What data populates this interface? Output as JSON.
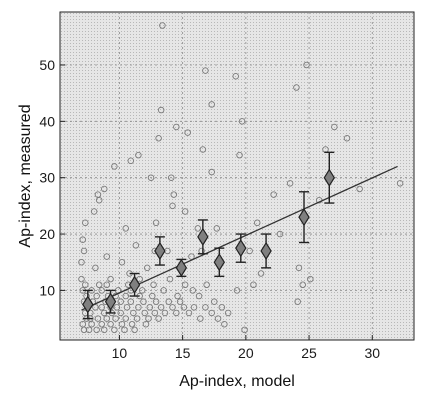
{
  "chart_data": {
    "type": "scatter",
    "title": "",
    "xlabel": "Ap-index, model",
    "ylabel": "Ap-index, measured",
    "xlim": [
      5.3,
      33.3
    ],
    "ylim": [
      1.2,
      59.4
    ],
    "xticks": [
      10,
      15,
      20,
      25,
      30
    ],
    "yticks": [
      10,
      20,
      30,
      40,
      50
    ],
    "grid": true,
    "colors": {
      "plot_background": "#d9d9d9",
      "points": "#7a7a7a",
      "means": "#7f7f7f",
      "fit_line": "#333333"
    },
    "series": [
      {
        "kind": "scatter",
        "points": [
          [
            13.4,
            57
          ],
          [
            16.8,
            49
          ],
          [
            17.3,
            43
          ],
          [
            19.2,
            48
          ],
          [
            24.0,
            46
          ],
          [
            24.8,
            50
          ],
          [
            13.3,
            42
          ],
          [
            13.1,
            37
          ],
          [
            14.5,
            39
          ],
          [
            15.4,
            38
          ],
          [
            19.7,
            40
          ],
          [
            11.5,
            34
          ],
          [
            10.9,
            33
          ],
          [
            8.3,
            27
          ],
          [
            8.8,
            28
          ],
          [
            9.6,
            32
          ],
          [
            12.5,
            30
          ],
          [
            14.1,
            30
          ],
          [
            14.3,
            27
          ],
          [
            16.6,
            35
          ],
          [
            19.5,
            34
          ],
          [
            17.3,
            31
          ],
          [
            22.2,
            27
          ],
          [
            23.5,
            29
          ],
          [
            26.3,
            35
          ],
          [
            27.0,
            39
          ],
          [
            28.0,
            37
          ],
          [
            29.0,
            28
          ],
          [
            32.2,
            29
          ],
          [
            25.8,
            26
          ],
          [
            8.0,
            24
          ],
          [
            8.4,
            26
          ],
          [
            10.5,
            21
          ],
          [
            11.3,
            18
          ],
          [
            12.8,
            17
          ],
          [
            14.2,
            25
          ],
          [
            15.2,
            24
          ],
          [
            17.7,
            21
          ],
          [
            16.5,
            17
          ],
          [
            18.0,
            15
          ],
          [
            20.3,
            17
          ],
          [
            20.9,
            22
          ],
          [
            22.7,
            20
          ],
          [
            24.2,
            14
          ],
          [
            24.5,
            11
          ],
          [
            24.1,
            8
          ],
          [
            25.1,
            12
          ],
          [
            7.1,
            19
          ],
          [
            7.2,
            17
          ],
          [
            7.0,
            15
          ],
          [
            7.3,
            22
          ],
          [
            8.1,
            14
          ],
          [
            9.0,
            16
          ],
          [
            9.3,
            12
          ],
          [
            10.2,
            15
          ],
          [
            10.8,
            13
          ],
          [
            11.6,
            12
          ],
          [
            12.2,
            14
          ],
          [
            12.7,
            11
          ],
          [
            13.5,
            10
          ],
          [
            14.0,
            12
          ],
          [
            14.6,
            9
          ],
          [
            15.2,
            11
          ],
          [
            15.8,
            10
          ],
          [
            16.3,
            9
          ],
          [
            16.9,
            11
          ],
          [
            17.5,
            8
          ],
          [
            18.1,
            7
          ],
          [
            18.6,
            6
          ],
          [
            19.3,
            10
          ],
          [
            19.9,
            3
          ],
          [
            20.6,
            11
          ],
          [
            21.2,
            13
          ],
          [
            16.2,
            21
          ],
          [
            15.7,
            16
          ],
          [
            13.8,
            17
          ],
          [
            12.9,
            22
          ],
          [
            7.0,
            12
          ],
          [
            7.1,
            10
          ],
          [
            7.2,
            8
          ],
          [
            7.3,
            6
          ],
          [
            7.4,
            5
          ],
          [
            7.1,
            4
          ],
          [
            7.2,
            3
          ],
          [
            7.6,
            3
          ],
          [
            7.7,
            5
          ],
          [
            7.5,
            7
          ],
          [
            7.4,
            9
          ],
          [
            7.3,
            11
          ],
          [
            7.8,
            10
          ],
          [
            7.9,
            8
          ],
          [
            7.7,
            6
          ],
          [
            7.8,
            4
          ],
          [
            8.2,
            3
          ],
          [
            8.3,
            5
          ],
          [
            8.1,
            7
          ],
          [
            8.2,
            9
          ],
          [
            8.4,
            11
          ],
          [
            8.6,
            10
          ],
          [
            8.6,
            7
          ],
          [
            8.6,
            4
          ],
          [
            8.8,
            3
          ],
          [
            9.0,
            5
          ],
          [
            8.8,
            6
          ],
          [
            8.9,
            8
          ],
          [
            9.0,
            11
          ],
          [
            9.1,
            9
          ],
          [
            9.3,
            7
          ],
          [
            9.4,
            6
          ],
          [
            9.3,
            4
          ],
          [
            9.6,
            3
          ],
          [
            9.7,
            5
          ],
          [
            9.8,
            7
          ],
          [
            9.7,
            9
          ],
          [
            9.9,
            10
          ],
          [
            10.1,
            8
          ],
          [
            10.1,
            6
          ],
          [
            10.2,
            4
          ],
          [
            10.4,
            3
          ],
          [
            10.5,
            5
          ],
          [
            10.6,
            7
          ],
          [
            10.5,
            9
          ],
          [
            10.7,
            11
          ],
          [
            10.9,
            10
          ],
          [
            10.9,
            8
          ],
          [
            11.1,
            6
          ],
          [
            11.0,
            4
          ],
          [
            11.2,
            3
          ],
          [
            11.4,
            5
          ],
          [
            11.5,
            7
          ],
          [
            11.6,
            9
          ],
          [
            11.8,
            10
          ],
          [
            11.9,
            8
          ],
          [
            12.0,
            6
          ],
          [
            12.1,
            4
          ],
          [
            12.3,
            5
          ],
          [
            12.4,
            7
          ],
          [
            12.6,
            9
          ],
          [
            12.8,
            6
          ],
          [
            12.9,
            8
          ],
          [
            13.1,
            5
          ],
          [
            13.3,
            7
          ],
          [
            13.6,
            6
          ],
          [
            13.9,
            8
          ],
          [
            14.2,
            7
          ],
          [
            14.5,
            6
          ],
          [
            14.8,
            8
          ],
          [
            15.1,
            7
          ],
          [
            15.5,
            6
          ],
          [
            15.9,
            7
          ],
          [
            16.4,
            5
          ],
          [
            16.8,
            7
          ],
          [
            17.3,
            6
          ],
          [
            17.8,
            5
          ],
          [
            18.3,
            4
          ]
        ]
      },
      {
        "kind": "binned_means",
        "x": [
          7.5,
          9.3,
          11.2,
          13.2,
          14.9,
          16.6,
          17.9,
          19.6,
          21.6,
          24.6,
          26.6
        ],
        "y": [
          7.5,
          8.0,
          11.0,
          17.0,
          14.0,
          19.5,
          15.0,
          17.5,
          17.0,
          23.0,
          30.0
        ],
        "err": [
          2.5,
          2.0,
          2.0,
          2.5,
          1.5,
          3.0,
          2.5,
          2.5,
          3.0,
          4.5,
          4.5
        ]
      },
      {
        "kind": "fit_line",
        "x": [
          7.0,
          32.0
        ],
        "y": [
          6.5,
          32.0
        ]
      }
    ]
  }
}
